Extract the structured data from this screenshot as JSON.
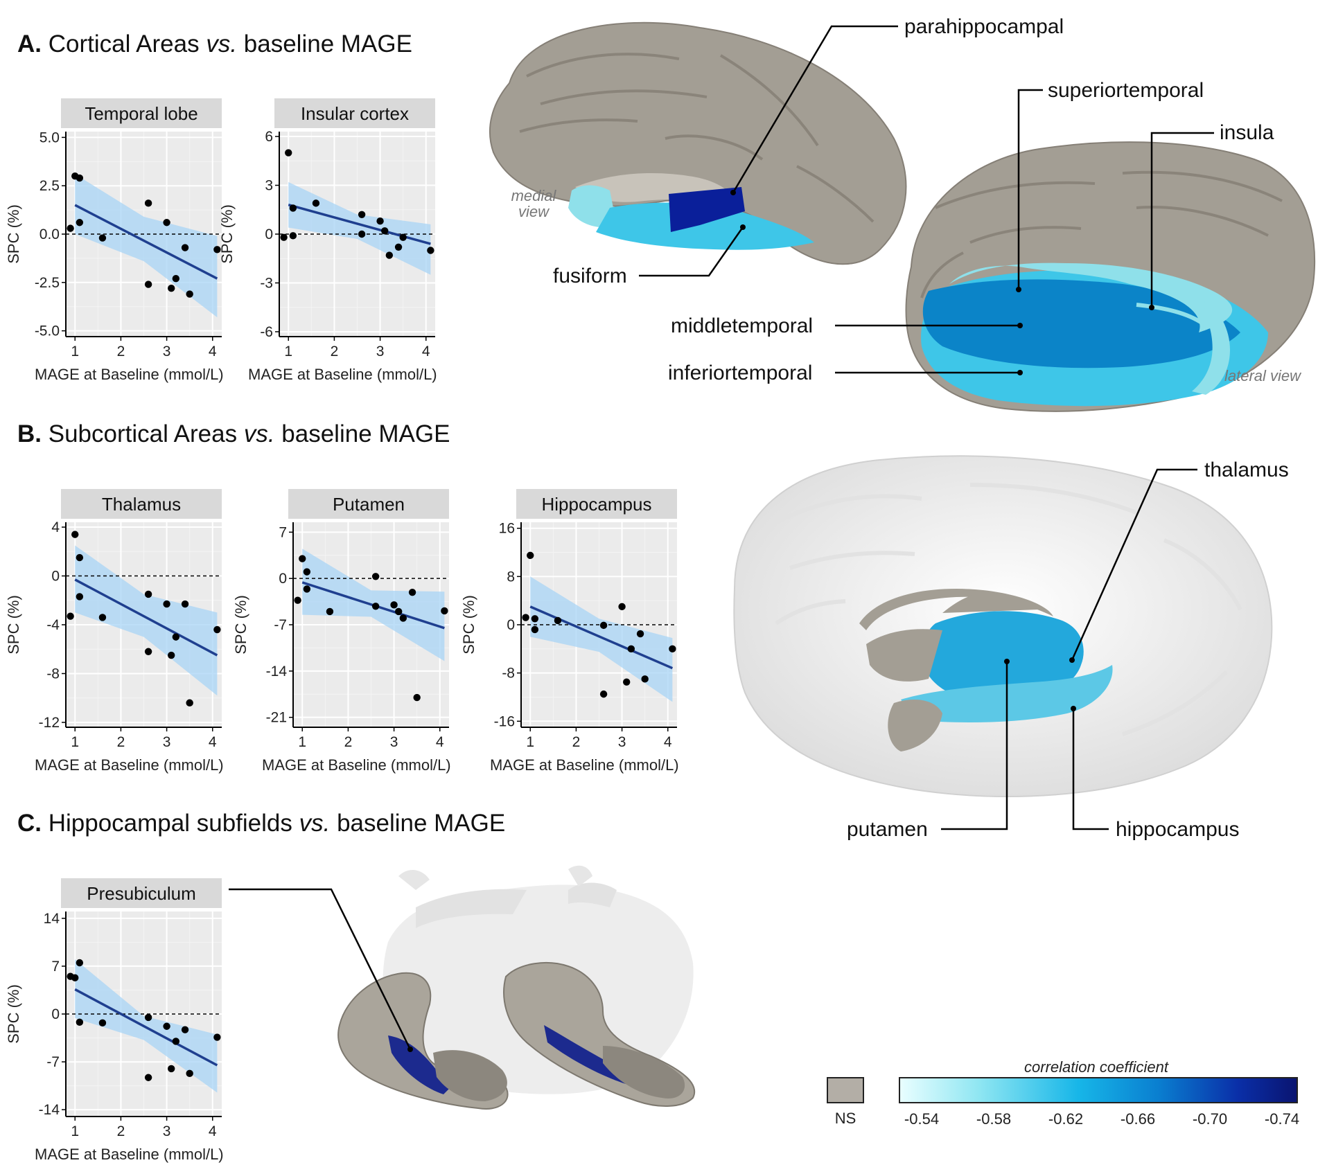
{
  "sections": {
    "a": {
      "letter": "A.",
      "pre": "Cortical Areas ",
      "vs": "vs.",
      "post": " baseline MAGE"
    },
    "b": {
      "letter": "B.",
      "pre": "Subcortical Areas ",
      "vs": "vs.",
      "post": " baseline MAGE"
    },
    "c": {
      "letter": "C.",
      "pre": "Hippocampal subfields ",
      "vs": "vs.",
      "post": " baseline MAGE"
    }
  },
  "colors": {
    "panel_bg": "#ebebeb",
    "strip_bg": "#d9d9d9",
    "grid": "#ffffff",
    "point": "#000000",
    "fit_line": "#1f3f8f",
    "ci_band": "#a8d4f5",
    "brain_gray": "#9f998f",
    "light_blue": "#8fe0ea",
    "mid_blue": "#1a9fd6",
    "blue": "#0b84c8",
    "dark_blue": "#0a1f9a",
    "ns_gray": "#b3aea6"
  },
  "chart_data": [
    {
      "type": "scatter",
      "panel": "temporal",
      "title": "Temporal lobe",
      "xlabel": "MAGE at Baseline (mmol/L)",
      "ylabel": "SPC (%)",
      "xlim": [
        0.8,
        4.2
      ],
      "xticks": [
        1,
        2,
        3,
        4
      ],
      "ylim": [
        -5.3,
        5.3
      ],
      "yticks": [
        5.0,
        2.5,
        0.0,
        -2.5,
        -5.0
      ],
      "ytick_labels": [
        "5.0",
        "2.5",
        "0.0",
        "-2.5",
        "-5.0"
      ],
      "points": [
        [
          0.9,
          0.3
        ],
        [
          1.0,
          3.0
        ],
        [
          1.1,
          2.9
        ],
        [
          1.1,
          0.6
        ],
        [
          1.6,
          -0.2
        ],
        [
          2.6,
          1.6
        ],
        [
          2.6,
          -2.6
        ],
        [
          3.0,
          0.6
        ],
        [
          3.1,
          -2.8
        ],
        [
          3.2,
          -2.3
        ],
        [
          3.4,
          -0.7
        ],
        [
          3.5,
          -3.1
        ],
        [
          4.1,
          -0.8
        ]
      ],
      "fit": {
        "x": [
          1.0,
          4.1
        ],
        "y": [
          1.5,
          -2.3
        ]
      },
      "ci": {
        "x": [
          1.0,
          2.5,
          4.1
        ],
        "upper": [
          3.1,
          0.9,
          -0.1
        ],
        "lower": [
          0.0,
          -1.4,
          -4.3
        ]
      }
    },
    {
      "type": "scatter",
      "panel": "insular",
      "title": "Insular cortex",
      "xlabel": "MAGE at Baseline (mmol/L)",
      "ylabel": "SPC (%)",
      "xlim": [
        0.8,
        4.2
      ],
      "xticks": [
        1,
        2,
        3,
        4
      ],
      "ylim": [
        -6.3,
        6.3
      ],
      "yticks": [
        6,
        3,
        0,
        -3,
        -6
      ],
      "ytick_labels": [
        "6",
        "3",
        "0",
        "-3",
        "-6"
      ],
      "points": [
        [
          0.9,
          -0.2
        ],
        [
          1.0,
          5.0
        ],
        [
          1.1,
          1.6
        ],
        [
          1.1,
          -0.1
        ],
        [
          1.6,
          1.9
        ],
        [
          2.6,
          1.2
        ],
        [
          2.6,
          0.0
        ],
        [
          3.0,
          0.8
        ],
        [
          3.1,
          0.2
        ],
        [
          3.2,
          -1.3
        ],
        [
          3.4,
          -0.8
        ],
        [
          3.5,
          -0.2
        ],
        [
          4.1,
          -1.0
        ]
      ],
      "fit": {
        "x": [
          1.0,
          4.1
        ],
        "y": [
          1.8,
          -0.6
        ]
      },
      "ci": {
        "x": [
          1.0,
          2.5,
          4.1
        ],
        "upper": [
          3.2,
          1.2,
          0.6
        ],
        "lower": [
          0.4,
          -0.3,
          -2.5
        ]
      }
    },
    {
      "type": "scatter",
      "panel": "thalamus",
      "title": "Thalamus",
      "xlabel": "MAGE at Baseline (mmol/L)",
      "ylabel": "SPC (%)",
      "xlim": [
        0.8,
        4.2
      ],
      "xticks": [
        1,
        2,
        3,
        4
      ],
      "ylim": [
        -12.4,
        4.4
      ],
      "yticks": [
        4,
        0,
        -4,
        -8,
        -12
      ],
      "ytick_labels": [
        "4",
        "0",
        "-4",
        "-8",
        "-12"
      ],
      "points": [
        [
          0.9,
          -3.3
        ],
        [
          1.0,
          3.4
        ],
        [
          1.1,
          1.5
        ],
        [
          1.1,
          -1.7
        ],
        [
          1.6,
          -3.4
        ],
        [
          2.6,
          -1.5
        ],
        [
          2.6,
          -6.2
        ],
        [
          3.0,
          -2.3
        ],
        [
          3.1,
          -6.5
        ],
        [
          3.2,
          -5.0
        ],
        [
          3.4,
          -2.3
        ],
        [
          3.5,
          -10.4
        ],
        [
          4.1,
          -4.4
        ]
      ],
      "fit": {
        "x": [
          1.0,
          4.1
        ],
        "y": [
          -0.3,
          -6.5
        ]
      },
      "ci": {
        "x": [
          1.0,
          2.5,
          4.1
        ],
        "upper": [
          2.5,
          -1.5,
          -3.0
        ],
        "lower": [
          -3.0,
          -5.0,
          -9.8
        ]
      }
    },
    {
      "type": "scatter",
      "panel": "putamen",
      "title": "Putamen",
      "xlabel": "MAGE at Baseline (mmol/L)",
      "ylabel": "SPC (%)",
      "xlim": [
        0.8,
        4.2
      ],
      "xticks": [
        1,
        2,
        3,
        4
      ],
      "ylim": [
        -22.5,
        8.5
      ],
      "yticks": [
        7,
        0,
        -7,
        -14,
        -21
      ],
      "ytick_labels": [
        "7",
        "0",
        "-7",
        "-14",
        "-21"
      ],
      "points": [
        [
          0.9,
          -3.3
        ],
        [
          1.0,
          3.0
        ],
        [
          1.1,
          1.0
        ],
        [
          1.1,
          -1.6
        ],
        [
          1.6,
          -5.0
        ],
        [
          2.6,
          0.3
        ],
        [
          2.6,
          -4.2
        ],
        [
          3.0,
          -4.0
        ],
        [
          3.1,
          -5.0
        ],
        [
          3.2,
          -6.0
        ],
        [
          3.4,
          -2.1
        ],
        [
          3.5,
          -18.0
        ],
        [
          4.1,
          -4.9
        ]
      ],
      "fit": {
        "x": [
          1.0,
          4.1
        ],
        "y": [
          -0.6,
          -7.5
        ]
      },
      "ci": {
        "x": [
          1.0,
          2.5,
          4.1
        ],
        "upper": [
          4.5,
          -1.8,
          -2.0
        ],
        "lower": [
          -5.5,
          -5.8,
          -12.5
        ]
      }
    },
    {
      "type": "scatter",
      "panel": "hippocampus",
      "title": "Hippocampus",
      "xlabel": "MAGE at Baseline (mmol/L)",
      "ylabel": "SPC (%)",
      "xlim": [
        0.8,
        4.2
      ],
      "xticks": [
        1,
        2,
        3,
        4
      ],
      "ylim": [
        -17,
        17
      ],
      "yticks": [
        16,
        8,
        0,
        -8,
        -16
      ],
      "ytick_labels": [
        "16",
        "8",
        "0",
        "-8",
        "-16"
      ],
      "points": [
        [
          0.9,
          1.2
        ],
        [
          1.0,
          11.5
        ],
        [
          1.1,
          1.0
        ],
        [
          1.1,
          -0.8
        ],
        [
          1.6,
          0.7
        ],
        [
          2.6,
          -0.1
        ],
        [
          2.6,
          -11.5
        ],
        [
          3.0,
          3.0
        ],
        [
          3.1,
          -9.5
        ],
        [
          3.2,
          -4.0
        ],
        [
          3.4,
          -1.5
        ],
        [
          3.5,
          -9.0
        ],
        [
          4.1,
          -4.0
        ]
      ],
      "fit": {
        "x": [
          1.0,
          4.1
        ],
        "y": [
          3.0,
          -7.2
        ]
      },
      "ci": {
        "x": [
          1.0,
          2.5,
          4.1
        ],
        "upper": [
          8.0,
          1.0,
          -2.2
        ],
        "lower": [
          -2.0,
          -4.5,
          -12.8
        ]
      }
    },
    {
      "type": "scatter",
      "panel": "presubiculum",
      "title": "Presubiculum",
      "xlabel": "MAGE at Baseline (mmol/L)",
      "ylabel": "SPC (%)",
      "xlim": [
        0.8,
        4.2
      ],
      "xticks": [
        1,
        2,
        3,
        4
      ],
      "ylim": [
        -15,
        15
      ],
      "yticks": [
        14,
        7,
        0,
        -7,
        -14
      ],
      "ytick_labels": [
        "14",
        "7",
        "0",
        "-7",
        "-14"
      ],
      "points": [
        [
          0.9,
          5.5
        ],
        [
          1.0,
          5.3
        ],
        [
          1.1,
          7.5
        ],
        [
          1.1,
          -1.2
        ],
        [
          1.6,
          -1.3
        ],
        [
          2.6,
          -0.5
        ],
        [
          2.6,
          -9.3
        ],
        [
          3.0,
          -1.8
        ],
        [
          3.1,
          -8.0
        ],
        [
          3.2,
          -4.0
        ],
        [
          3.4,
          -2.3
        ],
        [
          3.5,
          -8.7
        ],
        [
          4.1,
          -3.4
        ]
      ],
      "fit": {
        "x": [
          1.0,
          4.1
        ],
        "y": [
          3.6,
          -7.5
        ]
      },
      "ci": {
        "x": [
          1.0,
          2.5,
          4.1
        ],
        "upper": [
          8.0,
          -0.3,
          -3.0
        ],
        "lower": [
          -0.6,
          -3.8,
          -11.5
        ]
      }
    }
  ],
  "brains": {
    "medial_view": {
      "line1": "medial",
      "line2": "view"
    },
    "lateral_view": "lateral view",
    "labels": {
      "parahippocampal": "parahippocampal",
      "superiortemporal": "superiortemporal",
      "insula": "insula",
      "fusiform": "fusiform",
      "middletemporal": "middletemporal",
      "inferiortemporal": "inferiortemporal",
      "thalamus": "thalamus",
      "putamen": "putamen",
      "hippocampus": "hippocampus"
    }
  },
  "legend": {
    "ns_label": "NS",
    "colorbar_title": "correlation coefficient",
    "colorbar_ticks": [
      "-0.54",
      "-0.58",
      "-0.62",
      "-0.66",
      "-0.70",
      "-0.74"
    ],
    "colorbar_stops": [
      "#e9feff",
      "#8fe6f2",
      "#17b6e8",
      "#0a7fd0",
      "#0a2fa8",
      "#0a1470"
    ]
  }
}
